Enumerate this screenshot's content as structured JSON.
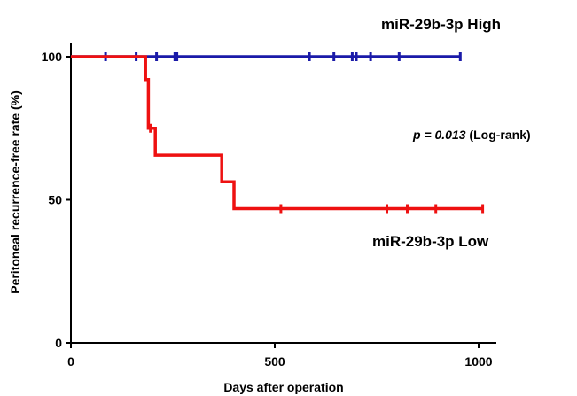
{
  "chart_data": {
    "type": "line",
    "subtype": "kaplan-meier step curve",
    "title": "",
    "xlabel": "Days after operation",
    "ylabel": "Peritoneal recurrence-free rate (%)",
    "xlim": [
      0,
      1100
    ],
    "ylim": [
      0,
      105
    ],
    "xticks": [
      0,
      500,
      1000
    ],
    "xtick_labels": [
      "0",
      "500",
      "1000"
    ],
    "yticks": [
      0,
      50,
      100
    ],
    "ytick_labels": [
      "0",
      "50",
      "100"
    ],
    "grid": false,
    "series": [
      {
        "name": "miR-29b-3p High",
        "color": "#1a1aa8",
        "steps": [
          [
            0,
            100
          ],
          [
            955,
            100
          ]
        ],
        "censored": [
          [
            85,
            100
          ],
          [
            160,
            100
          ],
          [
            210,
            100
          ],
          [
            255,
            100
          ],
          [
            260,
            100
          ],
          [
            585,
            100
          ],
          [
            645,
            100
          ],
          [
            690,
            100
          ],
          [
            700,
            100
          ],
          [
            735,
            100
          ],
          [
            805,
            100
          ],
          [
            955,
            100
          ]
        ]
      },
      {
        "name": "miR-29b-3p Low",
        "color": "#ee1111",
        "steps": [
          [
            0,
            100
          ],
          [
            183,
            100
          ],
          [
            183,
            92
          ],
          [
            190,
            92
          ],
          [
            190,
            75
          ],
          [
            207,
            75
          ],
          [
            207,
            65.6
          ],
          [
            370,
            65.6
          ],
          [
            370,
            56.3
          ],
          [
            400,
            56.3
          ],
          [
            400,
            46.9
          ],
          [
            1010,
            46.9
          ]
        ],
        "censored": [
          [
            195,
            75
          ],
          [
            515,
            46.9
          ],
          [
            775,
            46.9
          ],
          [
            825,
            46.9
          ],
          [
            895,
            46.9
          ],
          [
            1010,
            46.9
          ]
        ]
      }
    ],
    "annotation": {
      "p_label": "p = 0.013",
      "test_label": " (Log-rank)"
    }
  }
}
